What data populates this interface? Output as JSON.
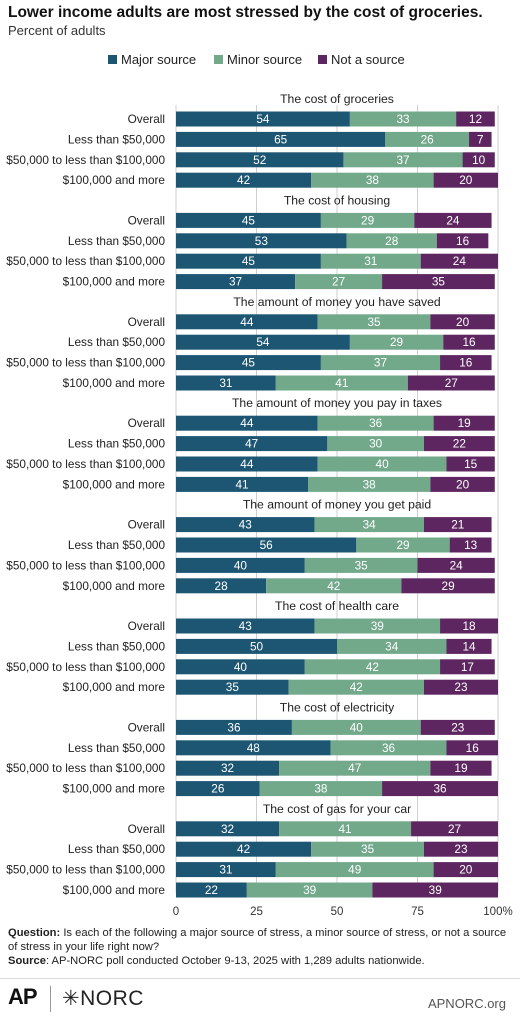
{
  "header": {
    "title": "Lower income adults are most stressed by the cost of groceries.",
    "subtitle": "Percent of adults"
  },
  "colors": {
    "major": "#1d5673",
    "minor": "#72a98b",
    "not": "#5e2660",
    "grid": "#cfcfcf"
  },
  "chart_data": {
    "type": "bar",
    "orientation": "horizontal",
    "stacked": true,
    "legend_position": "top",
    "xlim": [
      0,
      100
    ],
    "x_ticks": [
      "0",
      "25",
      "50",
      "75",
      "100%"
    ],
    "series_names": [
      "Major source",
      "Minor source",
      "Not a source"
    ],
    "groups": [
      {
        "title": "The cost of groceries",
        "rows": [
          {
            "label": "Overall",
            "values": [
              54,
              33,
              12
            ]
          },
          {
            "label": "Less than $50,000",
            "values": [
              65,
              26,
              7
            ]
          },
          {
            "label": "$50,000 to less than $100,000",
            "values": [
              52,
              37,
              10
            ]
          },
          {
            "label": "$100,000 and more",
            "values": [
              42,
              38,
              20
            ]
          }
        ]
      },
      {
        "title": "The cost of housing",
        "rows": [
          {
            "label": "Overall",
            "values": [
              45,
              29,
              24
            ]
          },
          {
            "label": "Less than $50,000",
            "values": [
              53,
              28,
              16
            ]
          },
          {
            "label": "$50,000 to less than $100,000",
            "values": [
              45,
              31,
              24
            ]
          },
          {
            "label": "$100,000 and more",
            "values": [
              37,
              27,
              35
            ]
          }
        ]
      },
      {
        "title": "The amount of money you have saved",
        "rows": [
          {
            "label": "Overall",
            "values": [
              44,
              35,
              20
            ]
          },
          {
            "label": "Less than $50,000",
            "values": [
              54,
              29,
              16
            ]
          },
          {
            "label": "$50,000 to less than $100,000",
            "values": [
              45,
              37,
              16
            ]
          },
          {
            "label": "$100,000 and more",
            "values": [
              31,
              41,
              27
            ]
          }
        ]
      },
      {
        "title": "The amount of money you pay in taxes",
        "rows": [
          {
            "label": "Overall",
            "values": [
              44,
              36,
              19
            ]
          },
          {
            "label": "Less than $50,000",
            "values": [
              47,
              30,
              22
            ]
          },
          {
            "label": "$50,000 to less than $100,000",
            "values": [
              44,
              40,
              15
            ]
          },
          {
            "label": "$100,000 and more",
            "values": [
              41,
              38,
              20
            ]
          }
        ]
      },
      {
        "title": "The amount of money you get paid",
        "rows": [
          {
            "label": "Overall",
            "values": [
              43,
              34,
              21
            ]
          },
          {
            "label": "Less than $50,000",
            "values": [
              56,
              29,
              13
            ]
          },
          {
            "label": "$50,000 to less than $100,000",
            "values": [
              40,
              35,
              24
            ]
          },
          {
            "label": "$100,000 and more",
            "values": [
              28,
              42,
              29
            ]
          }
        ]
      },
      {
        "title": "The cost of health care",
        "rows": [
          {
            "label": "Overall",
            "values": [
              43,
              39,
              18
            ]
          },
          {
            "label": "Less than $50,000",
            "values": [
              50,
              34,
              14
            ]
          },
          {
            "label": "$50,000 to less than $100,000",
            "values": [
              40,
              42,
              17
            ]
          },
          {
            "label": "$100,000 and more",
            "values": [
              35,
              42,
              23
            ]
          }
        ]
      },
      {
        "title": "The cost of electricity",
        "rows": [
          {
            "label": "Overall",
            "values": [
              36,
              40,
              23
            ]
          },
          {
            "label": "Less than $50,000",
            "values": [
              48,
              36,
              16
            ]
          },
          {
            "label": "$50,000 to less than $100,000",
            "values": [
              32,
              47,
              19
            ]
          },
          {
            "label": "$100,000 and more",
            "values": [
              26,
              38,
              36
            ]
          }
        ]
      },
      {
        "title": "The cost of gas for your car",
        "rows": [
          {
            "label": "Overall",
            "values": [
              32,
              41,
              27
            ]
          },
          {
            "label": "Less than $50,000",
            "values": [
              42,
              35,
              23
            ]
          },
          {
            "label": "$50,000 to less than $100,000",
            "values": [
              31,
              49,
              20
            ]
          },
          {
            "label": "$100,000 and more",
            "values": [
              22,
              39,
              39
            ]
          }
        ]
      }
    ]
  },
  "notes": {
    "question_label": "Question:",
    "question_text": "Is each of the following a major source of stress, a minor source of stress, or not a source of stress in your life right now?",
    "source_label": "Source",
    "source_text": ": AP-NORC poll conducted October 9-13, 2025 with 1,289 adults nationwide."
  },
  "footer": {
    "ap_logo": "AP",
    "norc_logo": "✳NORC",
    "site": "APNORC.org"
  }
}
